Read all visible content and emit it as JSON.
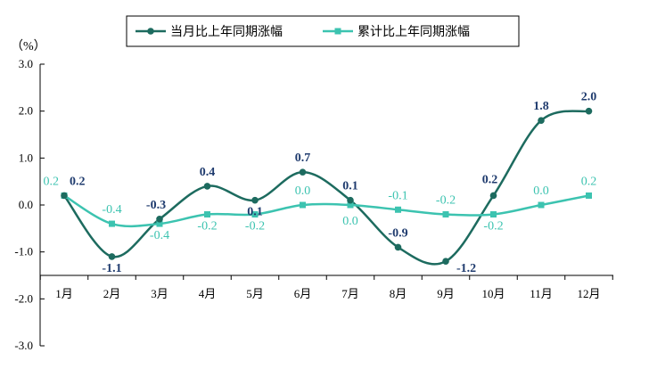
{
  "chart_data": {
    "type": "line",
    "unit": "（%）",
    "categories": [
      "1月",
      "2月",
      "3月",
      "4月",
      "5月",
      "6月",
      "7月",
      "8月",
      "9月",
      "10月",
      "11月",
      "12月"
    ],
    "ylim": [
      -3.0,
      3.0
    ],
    "yticks": [
      "3.0",
      "2.0",
      "1.0",
      "0.0",
      "-1.0",
      "-2.0",
      "-3.0"
    ],
    "series": [
      {
        "name": "当月比上年同期涨幅",
        "color": "#1d6b5f",
        "label_color": "#1f3b6e",
        "values": [
          0.2,
          -1.1,
          -0.3,
          0.4,
          0.1,
          0.7,
          0.1,
          -0.9,
          -1.2,
          0.2,
          1.8,
          2.0
        ],
        "labels": [
          "0.2",
          "-1.1",
          "-0.3",
          "0.4",
          "0.1",
          "0.7",
          "0.1",
          "-0.9",
          "-1.2",
          "0.2",
          "1.8",
          "2.0"
        ]
      },
      {
        "name": "累计比上年同期涨幅",
        "color": "#3cc3b0",
        "label_color": "#3cc3b0",
        "values": [
          0.2,
          -0.4,
          -0.4,
          -0.2,
          -0.2,
          0.0,
          0.0,
          -0.1,
          -0.2,
          -0.2,
          0.0,
          0.2
        ],
        "labels": [
          "0.2",
          "-0.4",
          "-0.4",
          "-0.2",
          "-0.2",
          "0.0",
          "0.0",
          "-0.1",
          "-0.2",
          "-0.2",
          "0.0",
          "0.2"
        ]
      }
    ],
    "grid": false,
    "legend": "top-center"
  }
}
